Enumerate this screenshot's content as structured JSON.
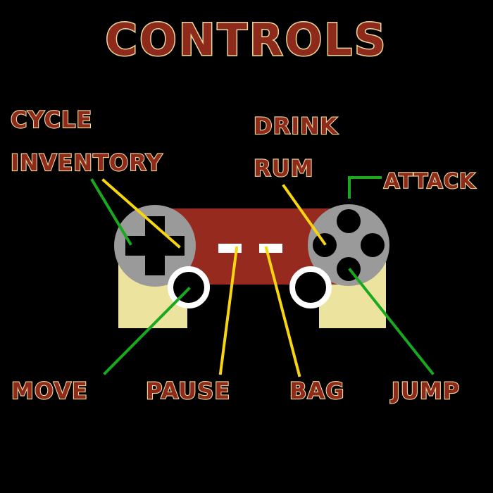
{
  "title": "CONTROLS",
  "labels": {
    "cycle_inventory_line1": "CYCLE",
    "cycle_inventory_line2": "INVENTORY",
    "drink_rum_line1": "DRINK",
    "drink_rum_line2": "RUM",
    "attack": "ATTACK",
    "move": "MOVE",
    "pause": "PAUSE",
    "bag": "BAG",
    "jump": "JUMP"
  },
  "colors": {
    "background": "#000000",
    "label_fill": "#8e2a1c",
    "label_outline": "#ecd99a",
    "controller_body": "#962a1e",
    "controller_grip": "#ece39e",
    "pad_gray": "#9a9a9a",
    "line_green": "#19a81f",
    "line_yellow": "#f7d511"
  },
  "icons": [
    "dpad-icon",
    "face-buttons-icon",
    "analog-stick-icon",
    "select-button-icon",
    "start-button-icon"
  ]
}
